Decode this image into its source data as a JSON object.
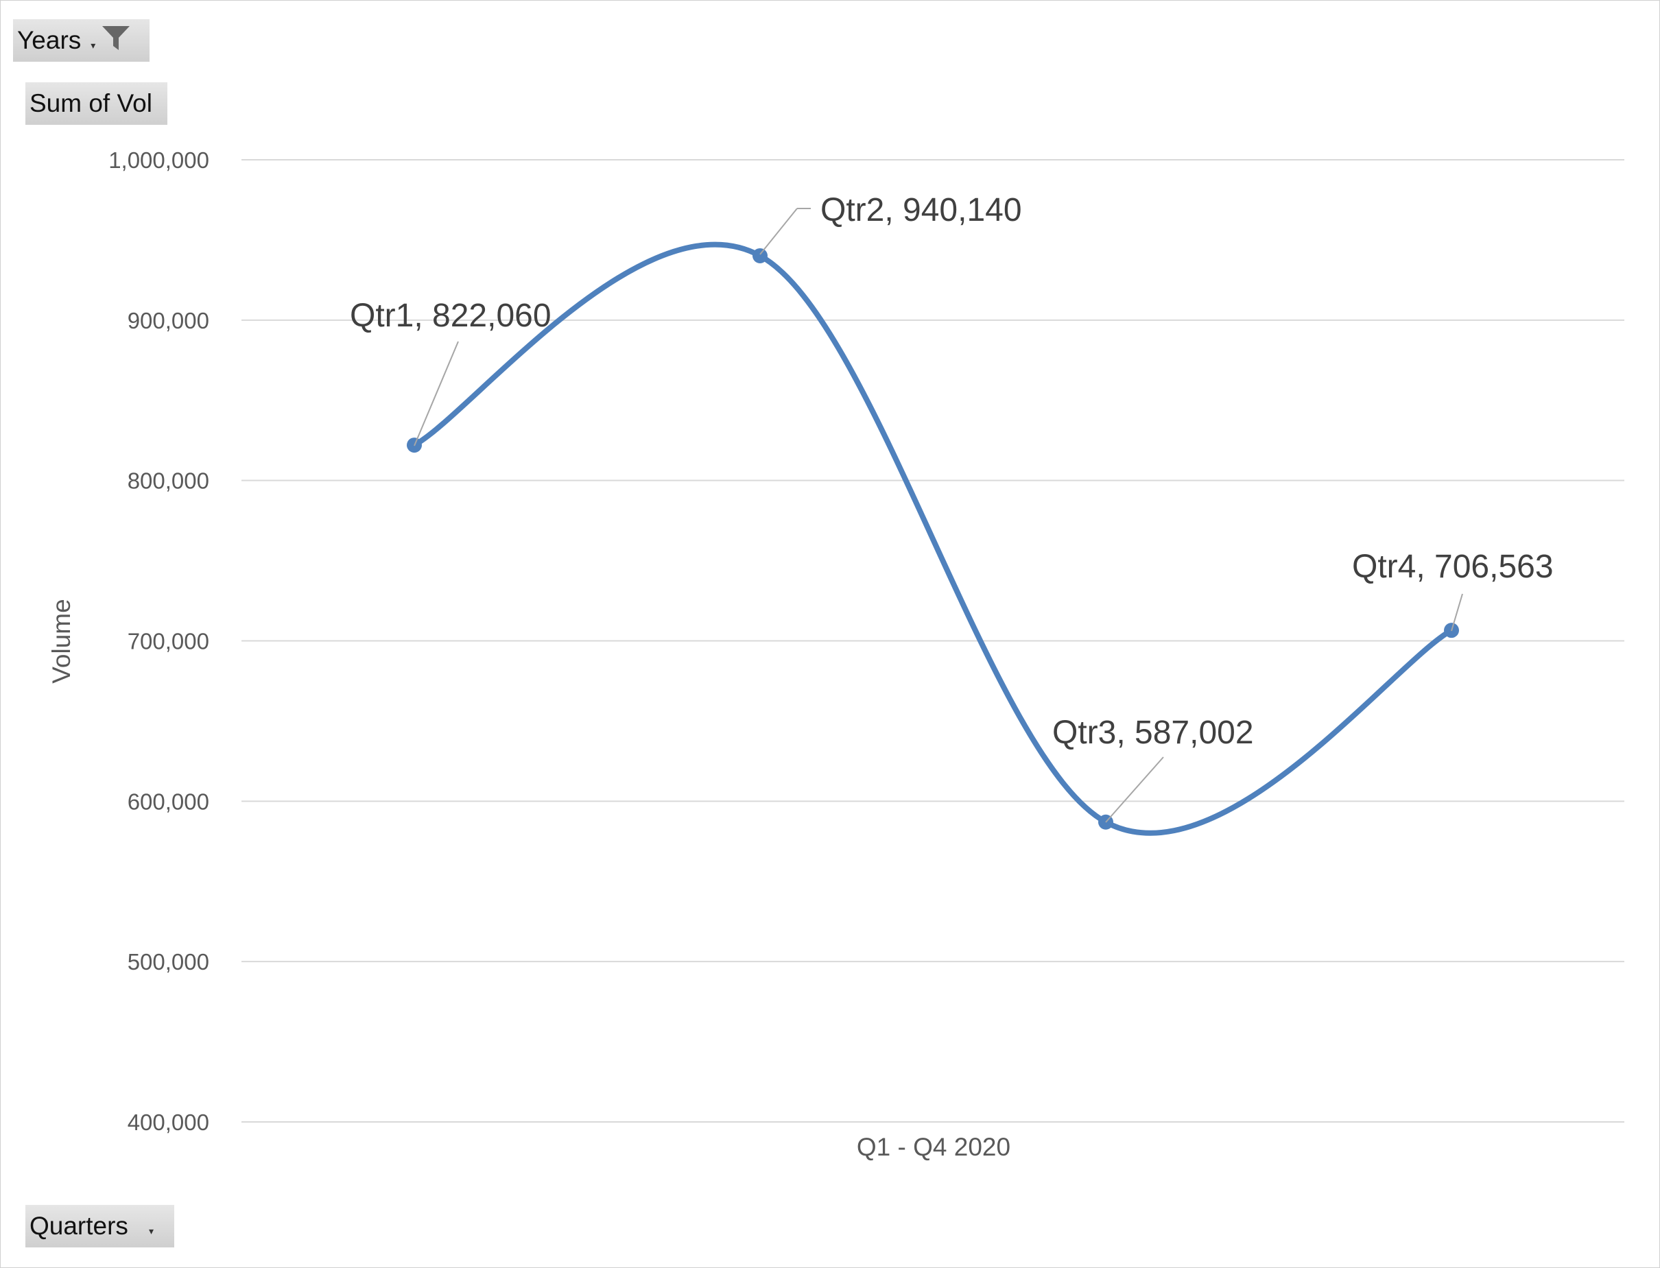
{
  "buttons": {
    "years": "Years",
    "sum": "Sum of Vol",
    "quarters": "Quarters"
  },
  "colors": {
    "series": "#4f81bd",
    "grid": "#d9d9d9",
    "text": "#595959"
  },
  "chart_data": {
    "type": "line",
    "smooth": true,
    "categories": [
      "Qtr1",
      "Qtr2",
      "Qtr3",
      "Qtr4"
    ],
    "values": [
      822060,
      940140,
      587002,
      706563
    ],
    "data_labels": [
      "Qtr1, 822,060",
      "Qtr2, 940,140",
      "Qtr3, 587,002",
      "Qtr4, 706,563"
    ],
    "xlabel": "Q1 - Q4 2020",
    "ylabel": "Volume",
    "ylim": [
      400000,
      1000000
    ],
    "yticks": [
      400000,
      500000,
      600000,
      700000,
      800000,
      900000,
      1000000
    ],
    "ytick_labels": [
      "400,000",
      "500,000",
      "600,000",
      "700,000",
      "800,000",
      "900,000",
      "1,000,000"
    ],
    "grid": true,
    "legend": "none"
  }
}
